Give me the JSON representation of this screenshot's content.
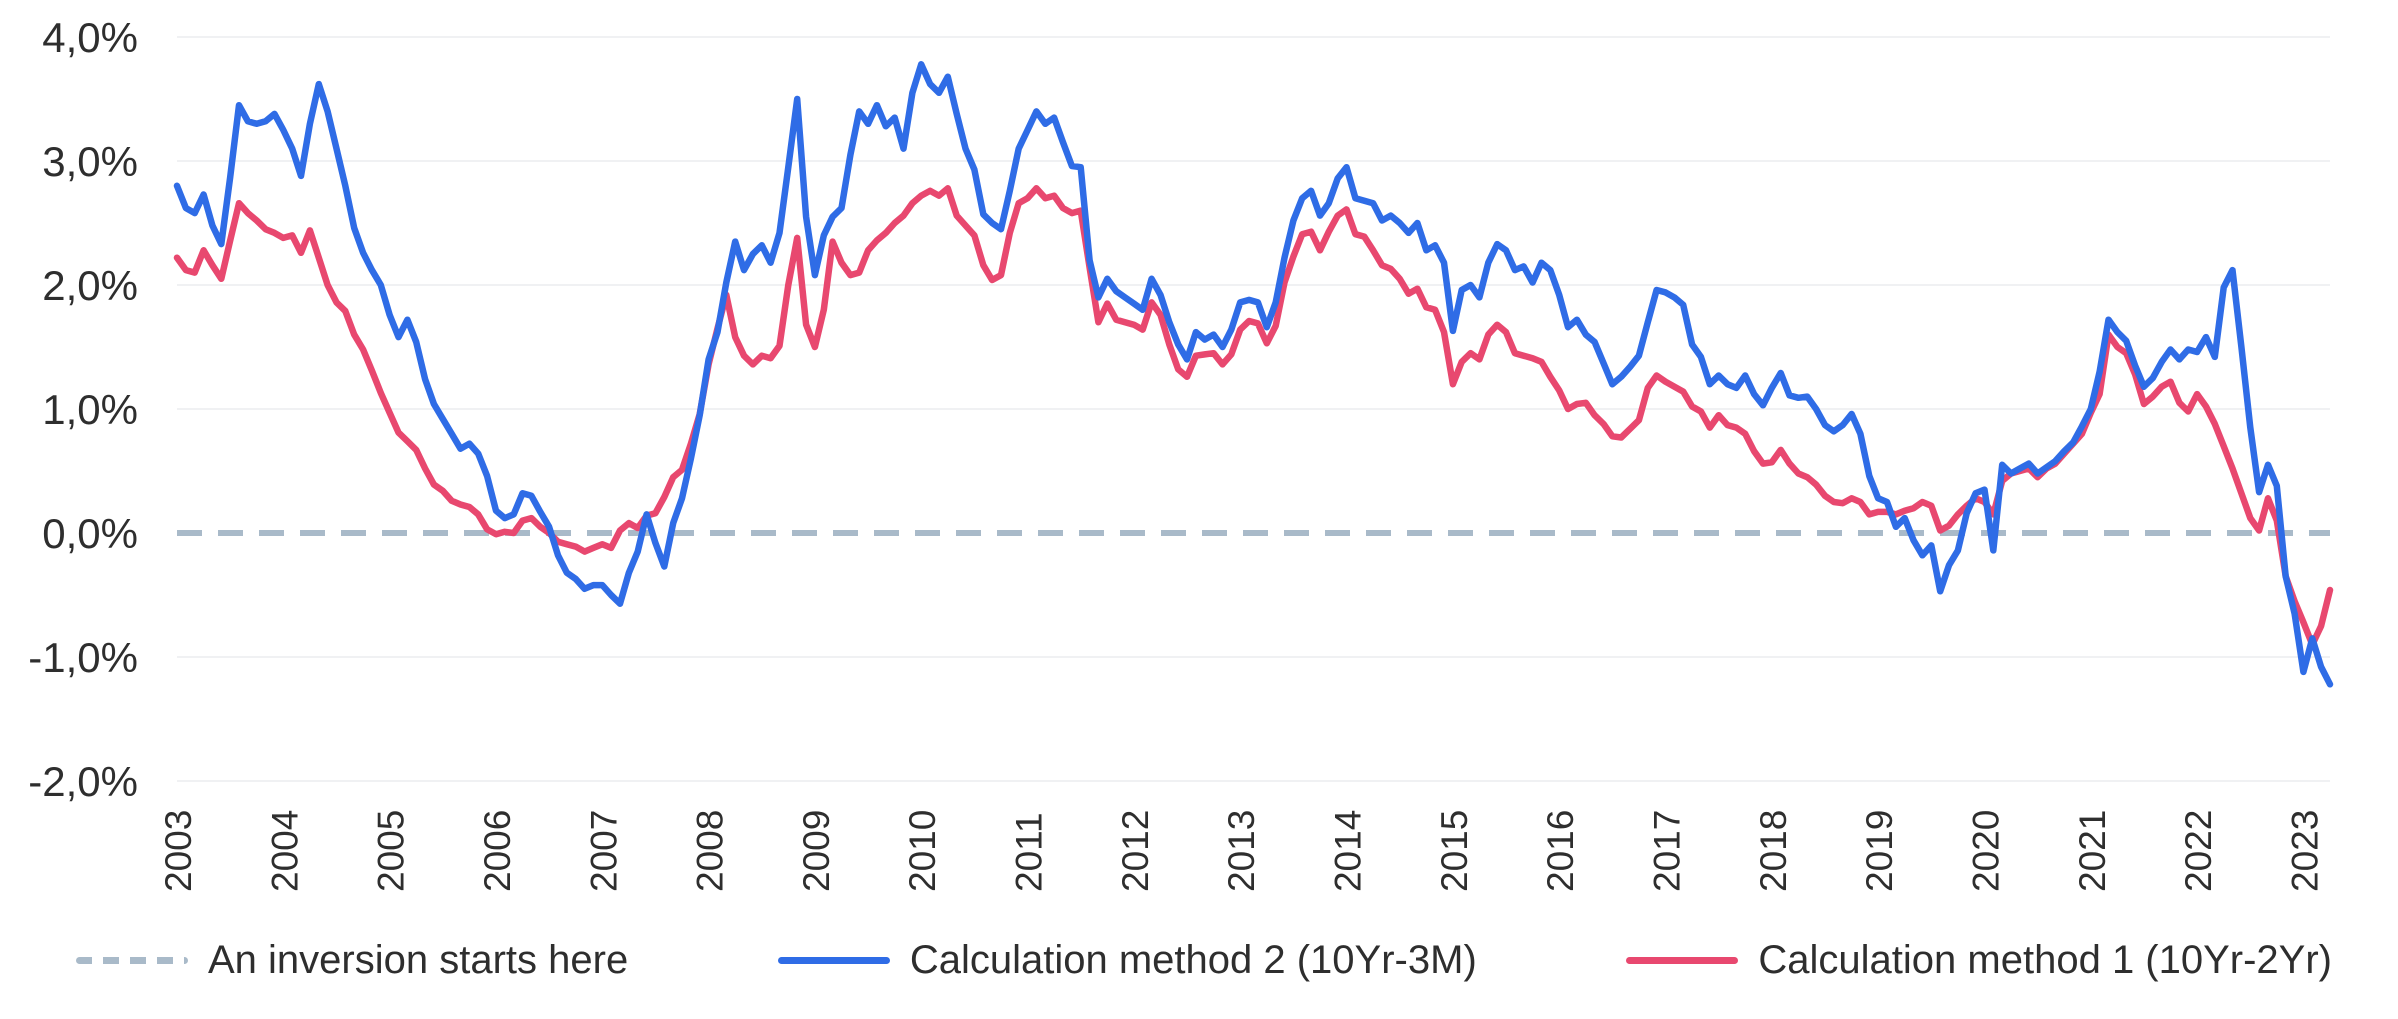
{
  "chart_data": {
    "type": "line",
    "title": "",
    "background": "#ffffff",
    "text_color": "#2e2e2e",
    "grid": {
      "show": true,
      "color": "#f0f1f3"
    },
    "ylim": [
      -2,
      4
    ],
    "y_tick_labels": [
      "4,0%",
      "3,0%",
      "2,0%",
      "1,0%",
      "0,0%",
      "-1,0%",
      "-2,0%"
    ],
    "y_tick_values": [
      4,
      3,
      2,
      1,
      0,
      -1,
      -2
    ],
    "x_tick_labels": [
      "2003",
      "2004",
      "2005",
      "2006",
      "2007",
      "2008",
      "2009",
      "2010",
      "2011",
      "2012",
      "2013",
      "2014",
      "2015",
      "2016",
      "2017",
      "2018",
      "2019",
      "2020",
      "2021",
      "2022",
      "2023"
    ],
    "x_start": "2003-01",
    "x_end": "2023-04",
    "points_per_year": 12,
    "zero_reference": {
      "label": "An inversion starts here",
      "value": 0,
      "color": "#a9bac9",
      "style": "dashed"
    },
    "legend": [
      {
        "label": "An inversion starts here",
        "swatch": "dashed",
        "color": "#a9bac9"
      },
      {
        "label": "Calculation method 2 (10Yr-3M)",
        "swatch": "line",
        "color": "#2f6ce6"
      },
      {
        "label": "Calculation method 1 (10Yr-2Yr)",
        "swatch": "line",
        "color": "#e8486f"
      }
    ],
    "series": [
      {
        "name": "Calculation method 2 (10Yr-3M)",
        "color": "#2f6ce6",
        "values": [
          2.8,
          2.62,
          2.58,
          2.73,
          2.48,
          2.33,
          2.87,
          3.45,
          3.32,
          3.3,
          3.32,
          3.38,
          3.25,
          3.1,
          2.88,
          3.3,
          3.62,
          3.4,
          3.1,
          2.8,
          2.46,
          2.26,
          2.12,
          2.0,
          1.76,
          1.58,
          1.72,
          1.54,
          1.24,
          1.04,
          0.92,
          0.8,
          0.68,
          0.72,
          0.64,
          0.46,
          0.18,
          0.12,
          0.15,
          0.32,
          0.3,
          0.17,
          0.05,
          -0.18,
          -0.32,
          -0.37,
          -0.45,
          -0.42,
          -0.42,
          -0.5,
          -0.57,
          -0.32,
          -0.15,
          0.15,
          -0.08,
          -0.27,
          0.08,
          0.28,
          0.6,
          0.95,
          1.4,
          1.62,
          2.02,
          2.35,
          2.12,
          2.25,
          2.32,
          2.18,
          2.42,
          2.95,
          3.5,
          2.55,
          2.08,
          2.4,
          2.55,
          2.62,
          3.05,
          3.4,
          3.3,
          3.45,
          3.28,
          3.35,
          3.1,
          3.55,
          3.78,
          3.62,
          3.55,
          3.68,
          3.38,
          3.1,
          2.93,
          2.57,
          2.5,
          2.45,
          2.76,
          3.1,
          3.25,
          3.4,
          3.3,
          3.35,
          3.15,
          2.96,
          2.95,
          2.2,
          1.9,
          2.05,
          1.95,
          1.9,
          1.85,
          1.8,
          2.05,
          1.92,
          1.7,
          1.52,
          1.4,
          1.62,
          1.56,
          1.6,
          1.5,
          1.64,
          1.86,
          1.88,
          1.86,
          1.66,
          1.86,
          2.22,
          2.52,
          2.7,
          2.76,
          2.56,
          2.66,
          2.86,
          2.95,
          2.7,
          2.68,
          2.66,
          2.52,
          2.56,
          2.5,
          2.42,
          2.5,
          2.28,
          2.32,
          2.18,
          1.63,
          1.96,
          2.0,
          1.9,
          2.18,
          2.33,
          2.28,
          2.12,
          2.15,
          2.02,
          2.18,
          2.12,
          1.92,
          1.66,
          1.72,
          1.6,
          1.54,
          1.37,
          1.2,
          1.26,
          1.34,
          1.43,
          1.7,
          1.96,
          1.94,
          1.9,
          1.84,
          1.52,
          1.42,
          1.2,
          1.27,
          1.2,
          1.17,
          1.27,
          1.12,
          1.03,
          1.17,
          1.29,
          1.11,
          1.09,
          1.1,
          1.0,
          0.87,
          0.82,
          0.87,
          0.96,
          0.8,
          0.46,
          0.28,
          0.25,
          0.05,
          0.12,
          -0.06,
          -0.18,
          -0.1,
          -0.47,
          -0.26,
          -0.14,
          0.16,
          0.32,
          0.35,
          -0.14,
          0.55,
          0.48,
          0.52,
          0.56,
          0.48,
          0.53,
          0.58,
          0.66,
          0.73,
          0.86,
          1.0,
          1.3,
          1.72,
          1.62,
          1.55,
          1.35,
          1.18,
          1.25,
          1.38,
          1.48,
          1.4,
          1.48,
          1.46,
          1.58,
          1.42,
          1.98,
          2.12,
          1.5,
          0.85,
          0.33,
          0.55,
          0.38,
          -0.35,
          -0.65,
          -1.12,
          -0.85,
          -1.08,
          -1.22
        ]
      },
      {
        "name": "Calculation method 1 (10Yr-2Yr)",
        "color": "#e8486f",
        "values": [
          2.22,
          2.12,
          2.1,
          2.28,
          2.16,
          2.05,
          2.36,
          2.66,
          2.58,
          2.52,
          2.45,
          2.42,
          2.38,
          2.4,
          2.26,
          2.44,
          2.22,
          2.0,
          1.86,
          1.79,
          1.6,
          1.48,
          1.31,
          1.13,
          0.97,
          0.81,
          0.74,
          0.67,
          0.52,
          0.39,
          0.34,
          0.26,
          0.23,
          0.21,
          0.15,
          0.03,
          -0.01,
          0.01,
          0.0,
          0.1,
          0.12,
          0.05,
          0.0,
          -0.07,
          -0.09,
          -0.11,
          -0.15,
          -0.12,
          -0.09,
          -0.12,
          0.02,
          0.08,
          0.04,
          0.14,
          0.16,
          0.29,
          0.45,
          0.51,
          0.72,
          0.96,
          1.36,
          1.65,
          1.92,
          1.58,
          1.43,
          1.36,
          1.43,
          1.41,
          1.51,
          2.0,
          2.38,
          1.68,
          1.5,
          1.8,
          2.35,
          2.18,
          2.08,
          2.1,
          2.28,
          2.36,
          2.42,
          2.5,
          2.56,
          2.66,
          2.72,
          2.76,
          2.72,
          2.78,
          2.56,
          2.48,
          2.4,
          2.16,
          2.04,
          2.08,
          2.42,
          2.66,
          2.7,
          2.78,
          2.7,
          2.72,
          2.62,
          2.58,
          2.6,
          2.14,
          1.7,
          1.85,
          1.72,
          1.7,
          1.68,
          1.64,
          1.86,
          1.76,
          1.52,
          1.32,
          1.26,
          1.43,
          1.44,
          1.45,
          1.36,
          1.44,
          1.64,
          1.71,
          1.69,
          1.53,
          1.67,
          2.02,
          2.23,
          2.41,
          2.43,
          2.28,
          2.43,
          2.56,
          2.61,
          2.41,
          2.39,
          2.28,
          2.16,
          2.13,
          2.05,
          1.93,
          1.97,
          1.82,
          1.8,
          1.62,
          1.2,
          1.38,
          1.45,
          1.4,
          1.6,
          1.68,
          1.62,
          1.45,
          1.43,
          1.41,
          1.38,
          1.26,
          1.15,
          1.0,
          1.04,
          1.05,
          0.95,
          0.88,
          0.78,
          0.77,
          0.84,
          0.91,
          1.17,
          1.27,
          1.22,
          1.18,
          1.14,
          1.02,
          0.98,
          0.85,
          0.95,
          0.87,
          0.85,
          0.8,
          0.66,
          0.56,
          0.57,
          0.67,
          0.56,
          0.48,
          0.45,
          0.39,
          0.3,
          0.25,
          0.24,
          0.28,
          0.25,
          0.15,
          0.17,
          0.17,
          0.15,
          0.18,
          0.2,
          0.25,
          0.22,
          0.02,
          0.06,
          0.15,
          0.22,
          0.28,
          0.25,
          0.15,
          0.42,
          0.48,
          0.5,
          0.52,
          0.45,
          0.52,
          0.56,
          0.64,
          0.72,
          0.8,
          0.97,
          1.12,
          1.6,
          1.5,
          1.45,
          1.28,
          1.04,
          1.1,
          1.18,
          1.22,
          1.05,
          0.98,
          1.12,
          1.02,
          0.88,
          0.7,
          0.52,
          0.32,
          0.12,
          0.02,
          0.28,
          0.1,
          -0.35,
          -0.55,
          -0.72,
          -0.9,
          -0.75,
          -0.46
        ]
      }
    ]
  }
}
